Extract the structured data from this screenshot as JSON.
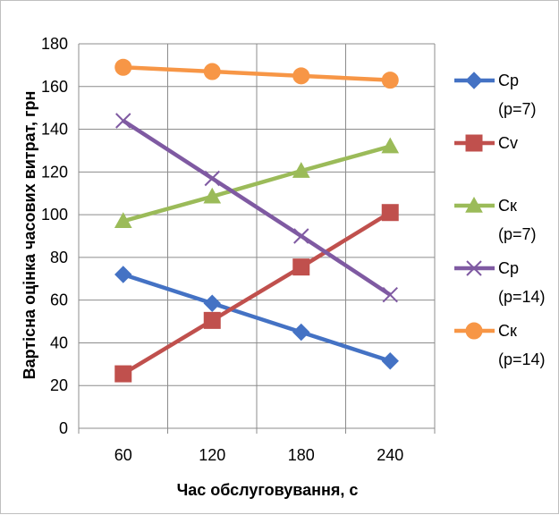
{
  "chart_data": {
    "type": "line",
    "xlabel": "Час обслуговування, с",
    "ylabel": "Вартісна оцінка часових витрат, грн",
    "categories": [
      "60",
      "120",
      "180",
      "240"
    ],
    "ylim": [
      0,
      180
    ],
    "y_ticks": [
      "0",
      "20",
      "40",
      "60",
      "80",
      "100",
      "120",
      "140",
      "160",
      "180"
    ],
    "grid": true,
    "legend_position": "right",
    "series": [
      {
        "name_lines": [
          "Cp",
          "(p=7)"
        ],
        "color": "#4472C4",
        "marker": "diamond",
        "values": [
          72,
          58.5,
          45,
          31.5
        ]
      },
      {
        "name_lines": [
          "Cv"
        ],
        "color": "#C0504D",
        "marker": "square",
        "values": [
          25.5,
          50.5,
          75.5,
          101
        ]
      },
      {
        "name_lines": [
          "Cк",
          "(p=7)"
        ],
        "color": "#9BBB59",
        "marker": "triangle",
        "values": [
          97,
          108.5,
          120.5,
          132
        ]
      },
      {
        "name_lines": [
          "Cp",
          "(p=14)"
        ],
        "color": "#7F5AA2",
        "marker": "x",
        "values": [
          144,
          117,
          90,
          62.5
        ]
      },
      {
        "name_lines": [
          "Cк",
          "(p=14)"
        ],
        "color": "#F79646",
        "marker": "circle",
        "values": [
          169,
          167,
          165,
          163
        ]
      }
    ]
  }
}
